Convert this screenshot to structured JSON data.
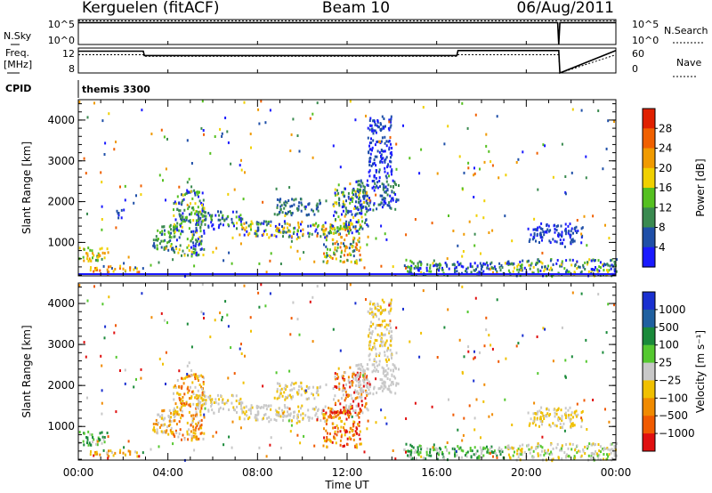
{
  "header": {
    "station": "Kerguelen (fitACF)",
    "beam": "Beam 10",
    "date": "06/Aug/2011"
  },
  "strip_labels": {
    "nsky": "N.Sky",
    "nsearch": "N.Search",
    "nsky_ticks": [
      "10^5",
      "10^0"
    ],
    "freq": "Freq.",
    "freq_unit": "[MHz]",
    "freq_ticks": [
      "12",
      "8"
    ],
    "nave": "Nave",
    "nave_ticks": [
      "60",
      "0"
    ],
    "cpid_label": "CPID",
    "cpid_value": "themis 3300"
  },
  "chart_data": [
    {
      "type": "line",
      "name": "N.Sky / N.Search",
      "x": [
        0,
        21.4,
        21.45,
        21.5,
        24
      ],
      "values": [
        4.4,
        4.4,
        0,
        4.4,
        4.4
      ],
      "ylim": [
        0,
        5
      ],
      "ytick_labels": [
        "10^0",
        "10^5"
      ],
      "xlim": [
        0,
        24
      ]
    },
    {
      "type": "line",
      "name": "Freq / Nave",
      "series": [
        {
          "name": "Freq",
          "x": [
            0,
            2.9,
            2.95,
            16.9,
            16.95,
            21.45,
            21.5,
            24
          ],
          "values": [
            11.5,
            11.5,
            10.8,
            10.8,
            11.6,
            11.6,
            8.0,
            11.6
          ]
        },
        {
          "name": "Nave",
          "x": [
            0,
            2.9,
            2.95,
            16.9,
            16.95,
            21.45,
            21.5,
            24
          ],
          "values": [
            44,
            44,
            40,
            40,
            44,
            44,
            0,
            44
          ]
        }
      ],
      "ylim_left": [
        8,
        12
      ],
      "ylim_right": [
        0,
        60
      ],
      "xlim": [
        0,
        24
      ]
    },
    {
      "type": "heatmap",
      "parameter": "Power",
      "ylabel": "Slant Range [km]",
      "colorbar_label": "Power [dB]",
      "colorbar_ticks": [
        "4",
        "8",
        "12",
        "16",
        "20",
        "24",
        "28"
      ],
      "colorbar_colors": [
        "#1a1aff",
        "#1f4fa8",
        "#3a8a50",
        "#55c020",
        "#f0d000",
        "#f09a00",
        "#f06000",
        "#e02000"
      ],
      "ylim": [
        180,
        4500
      ],
      "yticks": [
        1000,
        2000,
        3000,
        4000
      ],
      "xlim": [
        0,
        24
      ],
      "regions": [
        {
          "t0": 0.0,
          "t1": 1.3,
          "r0": 560,
          "r1": 900,
          "c": [
            2,
            3,
            4,
            5
          ]
        },
        {
          "t0": 0.5,
          "t1": 2.8,
          "r0": 300,
          "r1": 450,
          "c": [
            4,
            5,
            6,
            1
          ]
        },
        {
          "t0": 1.6,
          "t1": 2.0,
          "r0": 1600,
          "r1": 1850,
          "c": [
            0,
            1
          ]
        },
        {
          "t0": 3.3,
          "t1": 4.4,
          "r0": 800,
          "r1": 1450,
          "c": [
            1,
            2,
            3
          ]
        },
        {
          "t0": 4.2,
          "t1": 5.6,
          "r0": 700,
          "r1": 2300,
          "c": [
            0,
            1,
            2,
            3,
            4
          ]
        },
        {
          "t0": 5.2,
          "t1": 7.3,
          "r0": 1350,
          "r1": 1800,
          "c": [
            0,
            1,
            2,
            3
          ]
        },
        {
          "t0": 7.0,
          "t1": 11.0,
          "r0": 1150,
          "r1": 1550,
          "c": [
            0,
            1,
            2,
            3,
            4,
            5
          ]
        },
        {
          "t0": 8.7,
          "t1": 10.8,
          "r0": 1700,
          "r1": 2100,
          "c": [
            1,
            2
          ]
        },
        {
          "t0": 10.9,
          "t1": 12.6,
          "r0": 500,
          "r1": 1500,
          "c": [
            1,
            2,
            3,
            4,
            5,
            6
          ]
        },
        {
          "t0": 11.3,
          "t1": 12.9,
          "r0": 1300,
          "r1": 2350,
          "c": [
            0,
            1,
            2,
            3,
            4
          ]
        },
        {
          "t0": 12.3,
          "t1": 14.3,
          "r0": 1800,
          "r1": 2550,
          "c": [
            0,
            1,
            2
          ]
        },
        {
          "t0": 12.9,
          "t1": 14.0,
          "r0": 2600,
          "r1": 4150,
          "c": [
            0,
            1
          ]
        },
        {
          "t0": 14.5,
          "t1": 16.6,
          "r0": 220,
          "r1": 600,
          "c": [
            0,
            1,
            2,
            3
          ]
        },
        {
          "t0": 16.2,
          "t1": 19.0,
          "r0": 250,
          "r1": 550,
          "c": [
            0,
            1,
            2
          ]
        },
        {
          "t0": 19.0,
          "t1": 24.0,
          "r0": 200,
          "r1": 620,
          "c": [
            0,
            1,
            2,
            3,
            4
          ]
        },
        {
          "t0": 20.0,
          "t1": 22.5,
          "r0": 1000,
          "r1": 1500,
          "c": [
            0,
            1
          ]
        }
      ],
      "scatter_colors": [
        0,
        1,
        2,
        3,
        4,
        5,
        6
      ]
    },
    {
      "type": "heatmap",
      "parameter": "Velocity",
      "ylabel": "Slant Range [km]",
      "xlabel": "Time UT",
      "colorbar_label": "Velocity [m s⁻¹]",
      "colorbar_ticks": [
        "1000",
        "500",
        "100",
        "25",
        "−25",
        "−100",
        "−500",
        "−1000"
      ],
      "colorbar_colors": [
        "#1a30d0",
        "#2060a0",
        "#1a8a3a",
        "#55c830",
        "#c8c8c8",
        "#f0c000",
        "#f08a00",
        "#f05a00",
        "#e01010"
      ],
      "ylim": [
        180,
        4500
      ],
      "yticks": [
        1000,
        2000,
        3000,
        4000
      ],
      "xlim": [
        0,
        24
      ],
      "xtick_labels": [
        "00:00",
        "04:00",
        "08:00",
        "12:00",
        "16:00",
        "20:00",
        "00:00"
      ],
      "regions": [
        {
          "t0": 0.0,
          "t1": 1.3,
          "r0": 560,
          "r1": 900,
          "c": [
            4,
            3,
            2
          ]
        },
        {
          "t0": 0.5,
          "t1": 2.8,
          "r0": 300,
          "r1": 450,
          "c": [
            5,
            6,
            4
          ]
        },
        {
          "t0": 3.3,
          "t1": 4.4,
          "r0": 800,
          "r1": 1450,
          "c": [
            5,
            6,
            4
          ]
        },
        {
          "t0": 4.2,
          "t1": 5.6,
          "r0": 700,
          "r1": 2300,
          "c": [
            6,
            7,
            5,
            4
          ]
        },
        {
          "t0": 5.2,
          "t1": 7.3,
          "r0": 1350,
          "r1": 1800,
          "c": [
            4,
            4,
            5
          ]
        },
        {
          "t0": 7.0,
          "t1": 11.0,
          "r0": 1150,
          "r1": 1550,
          "c": [
            4,
            4,
            4,
            5
          ]
        },
        {
          "t0": 8.7,
          "t1": 10.8,
          "r0": 1700,
          "r1": 2100,
          "c": [
            4,
            5
          ]
        },
        {
          "t0": 10.9,
          "t1": 12.6,
          "r0": 500,
          "r1": 1500,
          "c": [
            6,
            7,
            5,
            8
          ]
        },
        {
          "t0": 11.3,
          "t1": 12.9,
          "r0": 1300,
          "r1": 2350,
          "c": [
            4,
            6,
            8
          ]
        },
        {
          "t0": 12.3,
          "t1": 14.3,
          "r0": 1800,
          "r1": 2550,
          "c": [
            4,
            4
          ]
        },
        {
          "t0": 12.9,
          "t1": 14.0,
          "r0": 2600,
          "r1": 4150,
          "c": [
            4,
            5
          ]
        },
        {
          "t0": 14.5,
          "t1": 16.6,
          "r0": 220,
          "r1": 600,
          "c": [
            3,
            4,
            2
          ]
        },
        {
          "t0": 16.2,
          "t1": 19.0,
          "r0": 250,
          "r1": 550,
          "c": [
            3,
            4,
            2
          ]
        },
        {
          "t0": 19.0,
          "t1": 24.0,
          "r0": 200,
          "r1": 620,
          "c": [
            4,
            4,
            5,
            3
          ]
        },
        {
          "t0": 20.0,
          "t1": 22.5,
          "r0": 1000,
          "r1": 1500,
          "c": [
            4,
            5
          ]
        }
      ],
      "scatter_colors": [
        0,
        2,
        3,
        4,
        5,
        6,
        7,
        8
      ]
    }
  ]
}
